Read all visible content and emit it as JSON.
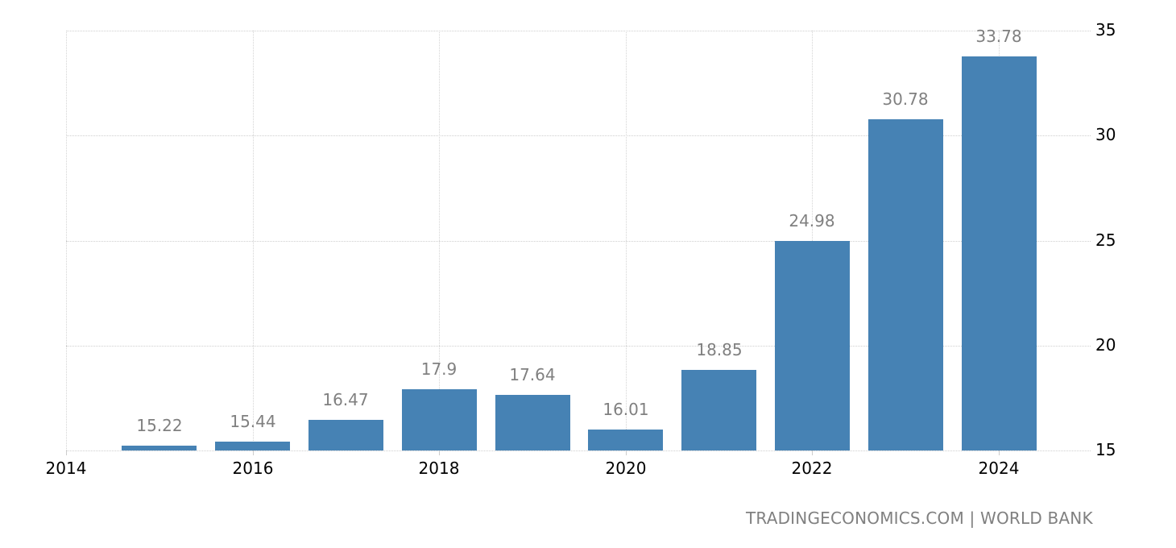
{
  "chart_data": {
    "type": "bar",
    "title": "",
    "xlabel": "",
    "ylabel": "",
    "categories": [
      "2015",
      "2016",
      "2017",
      "2018",
      "2019",
      "2020",
      "2021",
      "2022",
      "2023",
      "2024"
    ],
    "values": [
      15.22,
      15.44,
      16.47,
      17.9,
      17.64,
      16.01,
      18.85,
      24.98,
      30.78,
      33.78
    ],
    "value_labels": [
      "15.22",
      "15.44",
      "16.47",
      "17.9",
      "17.64",
      "16.01",
      "18.85",
      "24.98",
      "30.78",
      "33.78"
    ],
    "ylim": [
      15,
      35
    ],
    "yticks": [
      15,
      20,
      25,
      30,
      35
    ],
    "ytick_labels": [
      "15",
      "20",
      "25",
      "30",
      "35"
    ],
    "xticks": [
      "2014",
      "2016",
      "2018",
      "2020",
      "2022",
      "2024"
    ],
    "y_axis_position": "right",
    "grid": true,
    "legend": null,
    "bar_color": "#4682b4"
  },
  "source": {
    "text": "TRADINGECONOMICS.COM | WORLD BANK"
  }
}
